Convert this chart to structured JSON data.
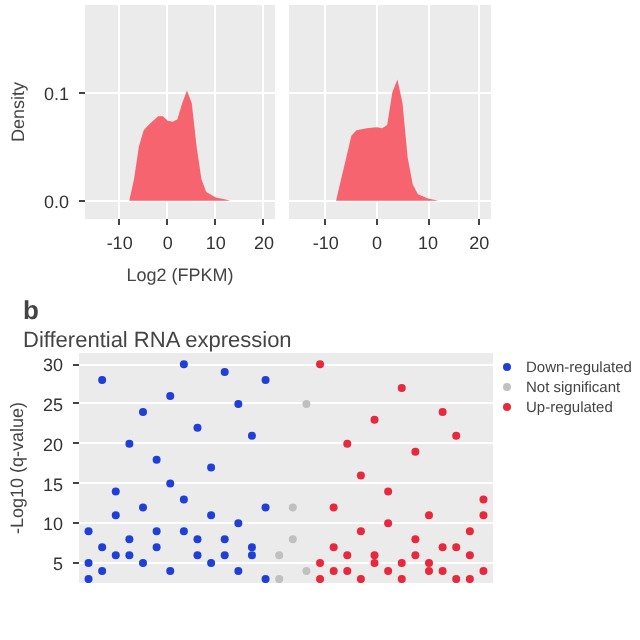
{
  "chart_data": [
    {
      "type": "area",
      "ylabel": "Density",
      "xlabel": "Log2 (FPKM)",
      "color": "#f5646f",
      "x": [
        -17,
        -8,
        -7,
        -6,
        -5,
        -4,
        -2,
        -1,
        0,
        1,
        2,
        3,
        4,
        5,
        6,
        7,
        8,
        10,
        12,
        13,
        22
      ],
      "values": [
        0,
        0,
        0.02,
        0.05,
        0.065,
        0.07,
        0.078,
        0.078,
        0.074,
        0.073,
        0.075,
        0.09,
        0.102,
        0.09,
        0.05,
        0.02,
        0.008,
        0.003,
        0.001,
        0,
        0
      ],
      "xlim": [
        -17.2,
        22.3
      ],
      "xticks": [
        -10,
        0,
        10,
        20
      ],
      "ylim": [
        -0.017,
        0.181
      ],
      "yticks": [
        {
          "value": 0,
          "label": "0.0"
        },
        0.1
      ],
      "grid": true
    },
    {
      "type": "area",
      "color": "#f5646f",
      "x": [
        -17,
        -8,
        -7,
        -6,
        -5,
        -4,
        -2,
        0,
        1,
        2,
        3,
        4,
        5,
        6,
        7,
        8,
        10,
        12,
        22
      ],
      "values": [
        0,
        0,
        0.02,
        0.04,
        0.06,
        0.065,
        0.067,
        0.068,
        0.067,
        0.07,
        0.1,
        0.112,
        0.09,
        0.04,
        0.015,
        0.006,
        0.002,
        0,
        0
      ],
      "xlim": [
        -17.2,
        22.3
      ],
      "xticks": [
        -10,
        0,
        10,
        20
      ],
      "ylim": [
        -0.017,
        0.181
      ],
      "yticks": [
        0,
        0.1
      ],
      "grid": true,
      "tick_labels": "x"
    },
    {
      "type": "scatter",
      "title": "Differential RNA expression",
      "annotations": [
        "b"
      ],
      "ylabel": "-Log10 (q-value)",
      "categories": [
        null,
        null,
        null,
        null,
        null,
        null,
        null,
        null,
        null,
        null,
        null,
        null,
        null,
        null,
        null,
        null,
        null,
        null,
        null,
        null,
        null,
        null,
        null,
        null,
        null,
        null,
        null,
        null,
        null,
        null
      ],
      "ylim": [
        2.5,
        31.4
      ],
      "yticks": [
        5,
        10,
        15,
        20,
        25,
        30
      ],
      "grid": "y",
      "legend": "right",
      "marker": "circle",
      "tick_labels": "y",
      "series": [
        {
          "name": "Down-regulated",
          "color": "#1f3fd6",
          "values": [
            9,
            28,
            14,
            20,
            24,
            18,
            26,
            30,
            22,
            17,
            29,
            25,
            21,
            28,
            null,
            null,
            null,
            null,
            null,
            null,
            null,
            null,
            null,
            null,
            null,
            null,
            null,
            null,
            null,
            null
          ]
        },
        {
          "color": "#1f3fd6",
          "values": [
            3,
            7,
            11,
            6,
            12,
            9,
            15,
            13,
            8,
            11,
            6,
            10,
            7,
            12,
            null,
            null,
            null,
            null,
            null,
            null,
            null,
            null,
            null,
            null,
            null,
            null,
            null,
            null,
            null,
            null
          ]
        },
        {
          "color": "#1f3fd6",
          "values": [
            5,
            4,
            6,
            8,
            5,
            7,
            4,
            9,
            6,
            5,
            8,
            4,
            6,
            3,
            null,
            null,
            null,
            null,
            null,
            null,
            null,
            null,
            null,
            null,
            null,
            null,
            null,
            null,
            null,
            null
          ]
        },
        {
          "name": "Not significant",
          "color": "#c0c0c0",
          "values": [
            null,
            null,
            null,
            null,
            null,
            null,
            null,
            null,
            null,
            null,
            null,
            null,
            null,
            null,
            6,
            12,
            4,
            null,
            null,
            null,
            null,
            null,
            null,
            null,
            null,
            null,
            null,
            null,
            null,
            null
          ]
        },
        {
          "color": "#c0c0c0",
          "values": [
            null,
            null,
            null,
            null,
            null,
            null,
            null,
            null,
            null,
            null,
            null,
            null,
            null,
            null,
            3,
            8,
            25,
            null,
            null,
            null,
            null,
            null,
            null,
            null,
            null,
            null,
            null,
            null,
            null,
            null
          ]
        },
        {
          "name": "Up-regulated",
          "color": "#e8283c",
          "values": [
            null,
            null,
            null,
            null,
            null,
            null,
            null,
            null,
            null,
            null,
            null,
            null,
            null,
            null,
            null,
            null,
            null,
            30,
            12,
            20,
            16,
            23,
            14,
            27,
            19,
            11,
            24,
            21,
            9,
            13
          ]
        },
        {
          "color": "#e8283c",
          "values": [
            null,
            null,
            null,
            null,
            null,
            null,
            null,
            null,
            null,
            null,
            null,
            null,
            null,
            null,
            null,
            null,
            null,
            5,
            7,
            4,
            9,
            6,
            10,
            5,
            8,
            4,
            7,
            3,
            6,
            11
          ]
        },
        {
          "color": "#e8283c",
          "values": [
            null,
            null,
            null,
            null,
            null,
            null,
            null,
            null,
            null,
            null,
            null,
            null,
            null,
            null,
            null,
            null,
            null,
            3,
            4,
            6,
            3,
            5,
            4,
            3,
            6,
            5,
            4,
            7,
            3,
            4
          ]
        }
      ]
    }
  ]
}
